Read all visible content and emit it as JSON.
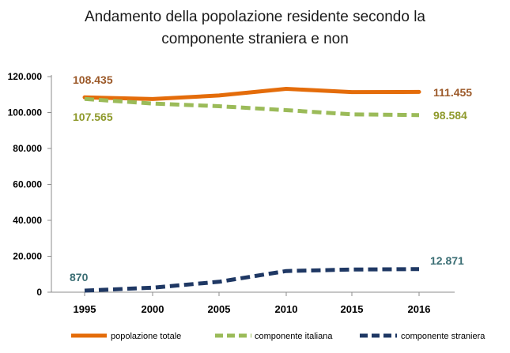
{
  "chart_data": {
    "type": "line",
    "title_line1": "Andamento della popolazione residente secondo la",
    "title_line2": "componente straniera e non",
    "categories": [
      "1995",
      "2000",
      "2005",
      "2010",
      "2015",
      "2016"
    ],
    "ylim": [
      0,
      120000
    ],
    "yticks": [
      0,
      20000,
      40000,
      60000,
      80000,
      100000,
      120000
    ],
    "ytick_labels": [
      "0",
      "20.000",
      "40.000",
      "60.000",
      "80.000",
      "100.000",
      "120.000"
    ],
    "grid": false,
    "legend_position": "bottom",
    "series": [
      {
        "name": "popolazione totale",
        "values": [
          108435,
          107500,
          109500,
          113200,
          111400,
          111455
        ],
        "color": "#E46C0A",
        "dash": "solid",
        "start_label": "108.435",
        "end_label": "111.455",
        "label_color": "#9C5A2A"
      },
      {
        "name": "componente italiana",
        "values": [
          107565,
          105000,
          103500,
          101300,
          99000,
          98584
        ],
        "color": "#9BBB59",
        "dash": "dashed",
        "start_label": "107.565",
        "end_label": "98.584",
        "label_color": "#8F9A2C"
      },
      {
        "name": "componente straniera",
        "values": [
          870,
          2500,
          5800,
          11800,
          12600,
          12871
        ],
        "color": "#1F3864",
        "dash": "dashed",
        "start_label": "870",
        "end_label": "12.871",
        "label_color": "#3B6E74"
      }
    ]
  }
}
